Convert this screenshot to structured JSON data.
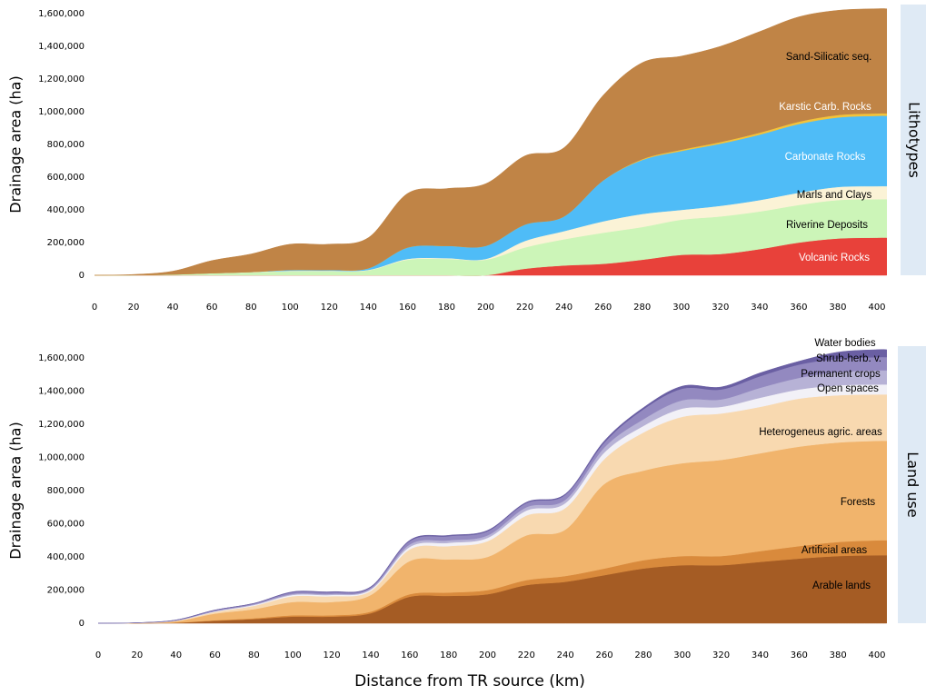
{
  "chart_data": [
    {
      "type": "stacked-area",
      "ylabel": "Drainage area (ha)",
      "facet_label": "Lithotypes",
      "x": [
        0,
        20,
        40,
        60,
        80,
        100,
        120,
        140,
        160,
        180,
        200,
        220,
        240,
        260,
        280,
        300,
        320,
        340,
        360,
        380,
        400,
        405
      ],
      "series": [
        {
          "name": "Volcanic Rocks",
          "color": "#e8413a",
          "values": [
            0,
            0,
            0,
            0,
            0,
            0,
            0,
            0,
            0,
            0,
            0,
            40000,
            60000,
            70000,
            95000,
            125000,
            130000,
            160000,
            200000,
            225000,
            230000,
            230000
          ]
        },
        {
          "name": "Riverine Deposits",
          "color": "#ccf5b8",
          "values": [
            0,
            1000,
            5000,
            12000,
            18000,
            25000,
            25000,
            30000,
            95000,
            100000,
            95000,
            130000,
            160000,
            190000,
            200000,
            215000,
            230000,
            230000,
            230000,
            235000,
            235000,
            235000
          ]
        },
        {
          "name": "Marls and Clays",
          "color": "#fbf3d6",
          "values": [
            0,
            0,
            0,
            1000,
            2000,
            3000,
            3000,
            3000,
            5000,
            5000,
            5000,
            40000,
            50000,
            70000,
            80000,
            60000,
            65000,
            70000,
            75000,
            80000,
            80000,
            80000
          ]
        },
        {
          "name": "Carbonate Rocks",
          "color": "#4fbcf7",
          "values": [
            0,
            0,
            0,
            0,
            0,
            5000,
            5000,
            10000,
            70000,
            75000,
            80000,
            100000,
            90000,
            250000,
            330000,
            360000,
            380000,
            400000,
            420000,
            425000,
            430000,
            430000
          ]
        },
        {
          "name": "Karstic Carb. Rocks",
          "color": "#f3c33a",
          "values": [
            0,
            0,
            0,
            0,
            0,
            0,
            0,
            0,
            0,
            0,
            0,
            0,
            0,
            0,
            5000,
            8000,
            10000,
            12000,
            14000,
            15000,
            15000,
            15000
          ]
        },
        {
          "name": "Sand-Silicatic seq.",
          "color": "#c08446",
          "values": [
            0,
            4000,
            20000,
            77000,
            110000,
            157000,
            157000,
            187000,
            330000,
            350000,
            380000,
            420000,
            420000,
            520000,
            590000,
            572000,
            585000,
            618000,
            641000,
            640000,
            640000,
            640000
          ]
        }
      ],
      "xlim": [
        0,
        405
      ],
      "ylim": [
        0,
        1600000
      ],
      "xticks": [
        0,
        20,
        40,
        60,
        80,
        100,
        120,
        140,
        160,
        180,
        200,
        220,
        240,
        260,
        280,
        300,
        320,
        340,
        360,
        380,
        400
      ],
      "yticks": [
        0,
        {
          "value": 200000,
          "label": "200,000"
        },
        {
          "value": 400000,
          "label": "400,000"
        },
        {
          "value": 600000,
          "label": "600,000"
        },
        {
          "value": 800000,
          "label": "800,000"
        },
        {
          "value": 1000000,
          "label": "1,000,000"
        },
        {
          "value": 1200000,
          "label": "1,200,000"
        },
        {
          "value": 1400000,
          "label": "1,400,000"
        },
        {
          "value": 1600000,
          "label": "1,600,000"
        }
      ]
    },
    {
      "type": "stacked-area",
      "ylabel": "Drainage area (ha)",
      "xlabel": "Distance from TR source (km)",
      "facet_label": "Land use",
      "x": [
        0,
        20,
        40,
        60,
        80,
        100,
        120,
        140,
        160,
        180,
        200,
        220,
        240,
        260,
        280,
        300,
        320,
        340,
        360,
        380,
        400,
        405
      ],
      "series": [
        {
          "name": "Arable lands",
          "color": "#a55c24",
          "values": [
            0,
            500,
            3000,
            15000,
            25000,
            40000,
            40000,
            60000,
            160000,
            165000,
            175000,
            230000,
            250000,
            290000,
            330000,
            350000,
            350000,
            370000,
            390000,
            405000,
            410000,
            410000
          ]
        },
        {
          "name": "Artificial areas",
          "color": "#d98a3c",
          "values": [
            0,
            200,
            1000,
            3000,
            5000,
            8000,
            8000,
            10000,
            15000,
            20000,
            25000,
            30000,
            35000,
            40000,
            50000,
            55000,
            55000,
            65000,
            75000,
            85000,
            90000,
            90000
          ]
        },
        {
          "name": "Forests",
          "color": "#f1b46c",
          "values": [
            0,
            1000,
            8000,
            40000,
            55000,
            80000,
            80000,
            100000,
            200000,
            200000,
            200000,
            270000,
            280000,
            510000,
            540000,
            560000,
            580000,
            590000,
            600000,
            600000,
            600000,
            600000
          ]
        },
        {
          "name": "Heterogeneus agric. areas",
          "color": "#f8d9b0",
          "values": [
            0,
            500,
            3000,
            10000,
            20000,
            35000,
            35000,
            25000,
            70000,
            80000,
            95000,
            120000,
            130000,
            150000,
            230000,
            280000,
            280000,
            280000,
            290000,
            285000,
            280000,
            280000
          ]
        },
        {
          "name": "Open spaces",
          "color": "#f2f1f7",
          "values": [
            0,
            200,
            1000,
            3000,
            5000,
            8000,
            8000,
            8000,
            15000,
            20000,
            20000,
            30000,
            30000,
            40000,
            40000,
            50000,
            40000,
            55000,
            55000,
            60000,
            60000,
            60000
          ]
        },
        {
          "name": "Permanent crops",
          "color": "#b7b2d6",
          "values": [
            0,
            200,
            1000,
            3000,
            4000,
            6000,
            6000,
            6000,
            15000,
            15000,
            15000,
            20000,
            20000,
            30000,
            40000,
            50000,
            45000,
            60000,
            70000,
            80000,
            85000,
            85000
          ]
        },
        {
          "name": "Shrub-herb. v.",
          "color": "#9389c0",
          "values": [
            0,
            200,
            2000,
            5000,
            5000,
            10000,
            10000,
            8000,
            20000,
            25000,
            25000,
            25000,
            30000,
            30000,
            60000,
            70000,
            60000,
            70000,
            80000,
            80000,
            80000,
            80000
          ]
        },
        {
          "name": "Water bodies",
          "color": "#6a5fa3",
          "values": [
            0,
            200,
            1000,
            1000,
            1000,
            3000,
            3000,
            3000,
            5000,
            5000,
            5000,
            5000,
            5000,
            10000,
            10000,
            15000,
            15000,
            20000,
            20000,
            40000,
            45000,
            45000
          ]
        }
      ],
      "xlim": [
        0,
        405
      ],
      "ylim": [
        0,
        1600000
      ],
      "xticks": [
        0,
        20,
        40,
        60,
        80,
        100,
        120,
        140,
        160,
        180,
        200,
        220,
        240,
        260,
        280,
        300,
        320,
        340,
        360,
        380,
        400
      ],
      "yticks": [
        0,
        {
          "value": 200000,
          "label": "200,000"
        },
        {
          "value": 400000,
          "label": "400,000"
        },
        {
          "value": 600000,
          "label": "600,000"
        },
        {
          "value": 800000,
          "label": "800,000"
        },
        {
          "value": 1000000,
          "label": "1,000,000"
        },
        {
          "value": 1200000,
          "label": "1,200,000"
        },
        {
          "value": 1400000,
          "label": "1,400,000"
        },
        {
          "value": 1600000,
          "label": "1,600,000"
        }
      ]
    }
  ]
}
